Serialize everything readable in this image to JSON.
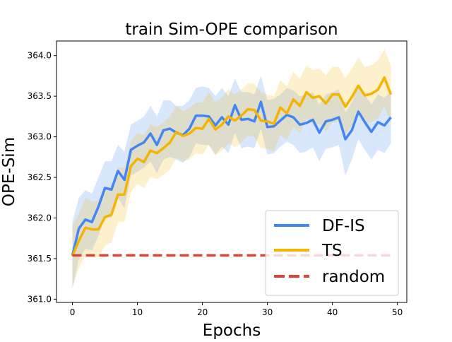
{
  "chart_data": {
    "type": "line",
    "title": "train Sim-OPE comparison",
    "xlabel": "Epochs",
    "ylabel": "OPE-Sim",
    "xlim": [
      -2.45,
      51.45
    ],
    "ylim": [
      360.96,
      364.18
    ],
    "xticks": [
      0,
      10,
      20,
      30,
      40,
      50
    ],
    "yticks": [
      361.0,
      361.5,
      362.0,
      362.5,
      363.0,
      363.5,
      364.0
    ],
    "xtick_labels": [
      "0",
      "10",
      "20",
      "30",
      "40",
      "50"
    ],
    "ytick_labels": [
      "361.0",
      "361.5",
      "362.0",
      "362.5",
      "363.0",
      "363.5",
      "364.0"
    ],
    "grid": false,
    "legend_position": "lower-right",
    "x": [
      0,
      1,
      2,
      3,
      4,
      5,
      6,
      7,
      8,
      9,
      10,
      11,
      12,
      13,
      14,
      15,
      16,
      17,
      18,
      19,
      20,
      21,
      22,
      23,
      24,
      25,
      26,
      27,
      28,
      29,
      30,
      31,
      32,
      33,
      34,
      35,
      36,
      37,
      38,
      39,
      40,
      41,
      42,
      43,
      44,
      45,
      46,
      47,
      48,
      49
    ],
    "series": [
      {
        "name": "DF-IS",
        "color": "#4285f4",
        "style": "solid",
        "values": [
          361.54,
          361.87,
          361.98,
          361.95,
          362.14,
          362.37,
          362.35,
          362.58,
          362.47,
          362.84,
          362.89,
          362.93,
          363.04,
          362.9,
          363.08,
          363.1,
          363.05,
          363.02,
          363.1,
          363.26,
          363.26,
          363.25,
          363.14,
          363.24,
          363.15,
          363.39,
          363.21,
          363.22,
          363.19,
          363.43,
          363.12,
          363.13,
          363.2,
          363.27,
          363.24,
          363.15,
          363.17,
          363.21,
          363.05,
          363.19,
          363.21,
          363.24,
          362.97,
          363.08,
          363.31,
          363.18,
          363.06,
          363.18,
          363.14,
          363.24
        ],
        "band_upper": [
          361.95,
          362.25,
          362.34,
          362.3,
          362.5,
          362.7,
          362.7,
          362.9,
          362.82,
          363.15,
          363.2,
          363.25,
          363.38,
          363.25,
          363.45,
          363.45,
          363.38,
          363.38,
          363.45,
          363.6,
          363.62,
          363.6,
          363.5,
          363.6,
          363.5,
          363.72,
          363.55,
          363.55,
          363.52,
          363.75,
          363.45,
          363.47,
          363.52,
          363.6,
          363.57,
          363.5,
          363.52,
          363.55,
          363.4,
          363.52,
          363.55,
          363.58,
          363.3,
          363.42,
          363.65,
          363.52,
          363.4,
          363.52,
          363.48,
          363.56
        ],
        "band_lower": [
          361.12,
          361.5,
          361.62,
          361.6,
          361.78,
          362.02,
          362.0,
          362.25,
          362.12,
          362.52,
          362.57,
          362.62,
          362.7,
          362.55,
          362.72,
          362.75,
          362.72,
          362.68,
          362.75,
          362.92,
          362.9,
          362.9,
          362.78,
          362.88,
          362.8,
          363.05,
          362.86,
          362.88,
          362.86,
          363.1,
          362.78,
          362.8,
          362.88,
          362.94,
          362.9,
          362.8,
          362.82,
          362.87,
          362.7,
          362.85,
          362.87,
          362.9,
          362.52,
          362.72,
          362.97,
          362.84,
          362.72,
          362.84,
          362.8,
          362.92
        ]
      },
      {
        "name": "TS",
        "color": "#f4b400",
        "style": "solid",
        "values": [
          361.53,
          361.72,
          361.88,
          361.86,
          361.86,
          362.01,
          362.04,
          362.29,
          362.29,
          362.64,
          362.73,
          362.69,
          362.83,
          362.8,
          362.86,
          362.93,
          363.06,
          363.01,
          363.04,
          363.11,
          363.1,
          363.22,
          363.09,
          363.15,
          363.25,
          363.2,
          363.26,
          363.34,
          363.33,
          363.2,
          363.19,
          363.16,
          363.36,
          363.29,
          363.46,
          363.38,
          363.55,
          363.48,
          363.5,
          363.41,
          363.52,
          363.52,
          363.37,
          363.49,
          363.63,
          363.51,
          363.53,
          363.58,
          363.73,
          363.52
        ],
        "band_upper": [
          361.9,
          362.05,
          362.25,
          362.2,
          362.22,
          362.37,
          362.4,
          362.62,
          362.62,
          362.95,
          363.05,
          363.02,
          363.15,
          363.12,
          363.18,
          363.25,
          363.38,
          363.32,
          363.36,
          363.42,
          363.42,
          363.55,
          363.42,
          363.48,
          363.58,
          363.52,
          363.58,
          363.66,
          363.65,
          363.55,
          363.52,
          363.5,
          363.7,
          363.62,
          363.8,
          363.72,
          363.88,
          363.82,
          363.84,
          363.76,
          363.86,
          363.86,
          363.72,
          363.84,
          363.98,
          363.86,
          363.88,
          363.94,
          364.08,
          363.88
        ],
        "band_lower": [
          361.15,
          361.38,
          361.55,
          361.52,
          361.52,
          361.66,
          361.7,
          361.95,
          361.95,
          362.32,
          362.42,
          362.37,
          362.5,
          362.48,
          362.53,
          362.6,
          362.74,
          362.7,
          362.72,
          362.8,
          362.78,
          362.9,
          362.77,
          362.83,
          362.92,
          362.87,
          362.93,
          363.01,
          363.0,
          362.86,
          362.85,
          362.82,
          363.02,
          362.96,
          363.12,
          363.04,
          363.22,
          363.14,
          363.16,
          363.06,
          363.18,
          363.18,
          363.02,
          363.14,
          363.28,
          363.16,
          363.18,
          363.22,
          363.38,
          363.16
        ]
      },
      {
        "name": "random",
        "color": "#db4437",
        "style": "dashed",
        "values": [
          361.54,
          361.54,
          361.54,
          361.54,
          361.54,
          361.54,
          361.54,
          361.54,
          361.54,
          361.54,
          361.54,
          361.54,
          361.54,
          361.54,
          361.54,
          361.54,
          361.54,
          361.54,
          361.54,
          361.54,
          361.54,
          361.54,
          361.54,
          361.54,
          361.54,
          361.54,
          361.54,
          361.54,
          361.54,
          361.54,
          361.54,
          361.54,
          361.54,
          361.54,
          361.54,
          361.54,
          361.54,
          361.54,
          361.54,
          361.54,
          361.54,
          361.54,
          361.54,
          361.54,
          361.54,
          361.54,
          361.54,
          361.54,
          361.54,
          361.54
        ]
      }
    ]
  }
}
